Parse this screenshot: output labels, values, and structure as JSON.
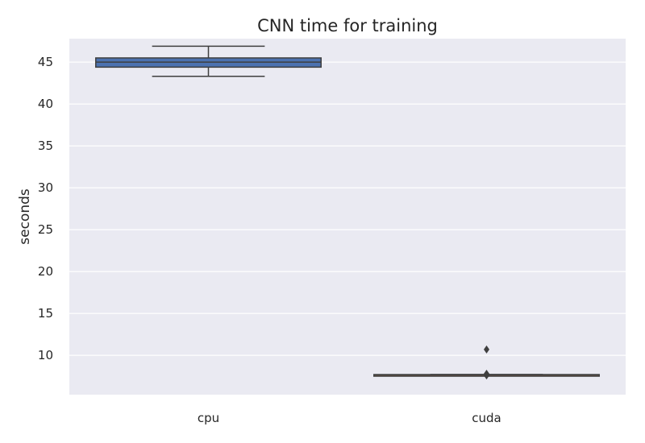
{
  "chart_data": {
    "type": "box",
    "title": "CNN time for training",
    "xlabel": "",
    "ylabel": "seconds",
    "categories": [
      "cpu",
      "cuda"
    ],
    "yticks": [
      10,
      15,
      20,
      25,
      30,
      35,
      40,
      45
    ],
    "ylim": [
      5.3,
      47.8
    ],
    "grid": true,
    "boxes": [
      {
        "category": "cpu",
        "whisker_low": 43.3,
        "q1": 44.4,
        "median": 45.0,
        "q3": 45.5,
        "whisker_high": 46.9,
        "outliers": []
      },
      {
        "category": "cuda",
        "whisker_low": 7.6,
        "q1": 7.6,
        "median": 7.65,
        "q3": 7.7,
        "whisker_high": 7.7,
        "outliers": [
          10.7,
          7.8,
          7.6
        ]
      }
    ],
    "colors": {
      "background": "#EAEAF2",
      "grid": "#FFFFFF",
      "cpu_box": "#4C72B0",
      "cuda_box": "#DD8452",
      "line": "#3F3F3F"
    }
  }
}
